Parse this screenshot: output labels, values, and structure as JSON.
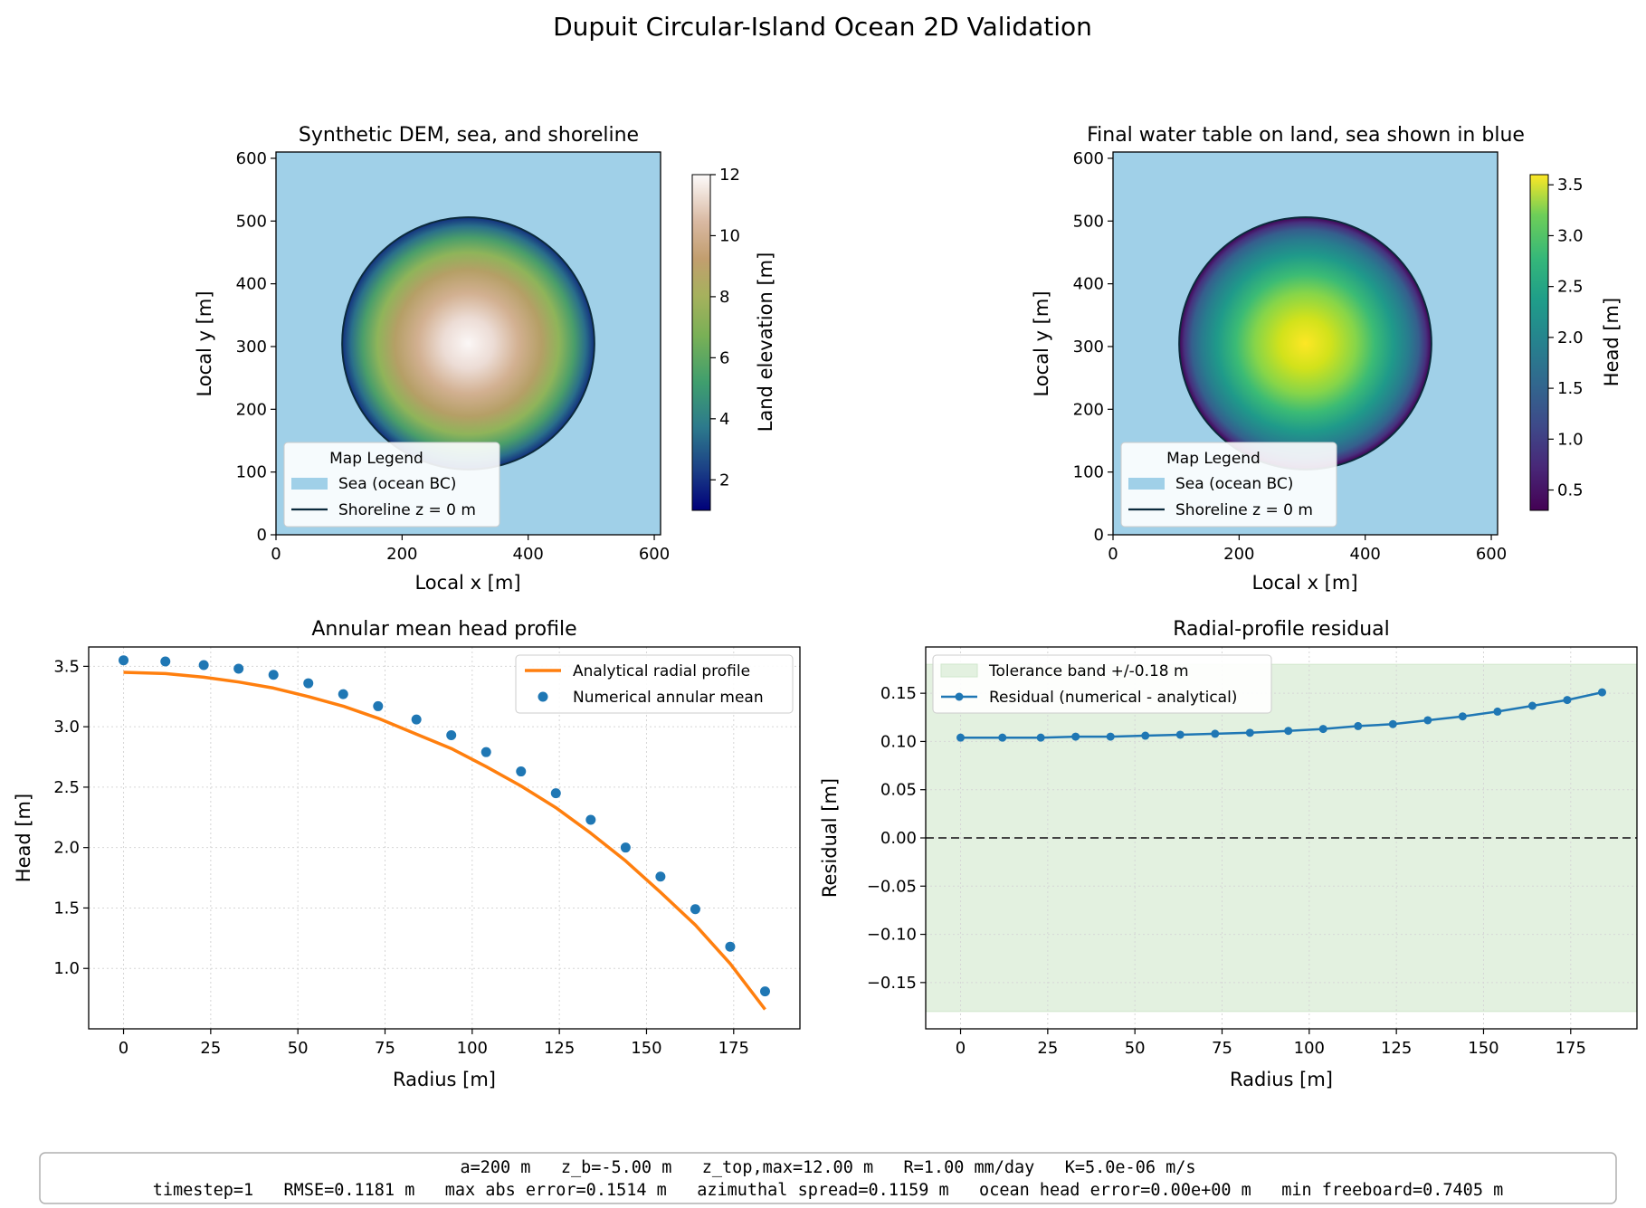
{
  "figure": {
    "suptitle": "Dupuit Circular-Island Ocean 2D Validation",
    "info_line1": "a=200 m   z_b=-5.00 m   z_top,max=12.00 m   R=1.00 mm/day   K=5.0e-06 m/s",
    "info_line2": "timestep=1   RMSE=0.1181 m   max abs error=0.1514 m   azimuthal spread=0.1159 m   ocean head error=0.00e+00 m   min freeboard=0.7405 m"
  },
  "colors": {
    "sea": "#a0d0e8",
    "shoreline": "#0b2a3c",
    "analytical": "#ff7f0e",
    "numerical": "#1f77b4",
    "tolerance_band": "#e3f1e0",
    "zero_line": "#444444"
  },
  "map_legend": {
    "title": "Map Legend",
    "sea_label": "Sea (ocean BC)",
    "shore_label": "Shoreline z = 0 m"
  },
  "chart_data": [
    {
      "type": "heatmap",
      "title": "Synthetic DEM, sea, and shoreline",
      "xlabel": "Local x [m]",
      "ylabel": "Local y [m]",
      "xticks": [
        0,
        200,
        400,
        600
      ],
      "yticks": [
        0,
        100,
        200,
        300,
        400,
        500,
        600
      ],
      "xlim": [
        0,
        610
      ],
      "ylim": [
        0,
        610
      ],
      "center": [
        305,
        305
      ],
      "island_radius": 200,
      "colorbar": {
        "label": "Land elevation [m]",
        "min": 1,
        "max": 12,
        "ticks": [
          2,
          4,
          6,
          8,
          10,
          12
        ],
        "colormap": "gist_earth"
      }
    },
    {
      "type": "heatmap",
      "title": "Final water table on land, sea shown in blue",
      "xlabel": "Local x [m]",
      "ylabel": "Local y [m]",
      "xticks": [
        0,
        200,
        400,
        600
      ],
      "yticks": [
        0,
        100,
        200,
        300,
        400,
        500,
        600
      ],
      "xlim": [
        0,
        610
      ],
      "ylim": [
        0,
        610
      ],
      "center": [
        305,
        305
      ],
      "island_radius": 200,
      "colorbar": {
        "label": "Head [m]",
        "min": 0.3,
        "max": 3.6,
        "ticks": [
          0.5,
          1.0,
          1.5,
          2.0,
          2.5,
          3.0,
          3.5
        ],
        "colormap": "viridis"
      }
    },
    {
      "type": "line",
      "title": "Annular mean head profile",
      "xlabel": "Radius [m]",
      "ylabel": "Head [m]",
      "xlim": [
        -10,
        194
      ],
      "ylim": [
        0.5,
        3.66
      ],
      "xticks": [
        0,
        25,
        50,
        75,
        100,
        125,
        150,
        175
      ],
      "yticks": [
        1.0,
        1.5,
        2.0,
        2.5,
        3.0,
        3.5
      ],
      "grid": true,
      "legend": "top-right",
      "series": [
        {
          "name": "Analytical radial profile",
          "kind": "line",
          "x": [
            0,
            12,
            23,
            33,
            43,
            53,
            63,
            73,
            83,
            94,
            104,
            114,
            124,
            134,
            144,
            154,
            164,
            174,
            184
          ],
          "values": [
            3.45,
            3.44,
            3.41,
            3.37,
            3.32,
            3.25,
            3.17,
            3.07,
            2.95,
            2.82,
            2.67,
            2.51,
            2.33,
            2.12,
            1.89,
            1.63,
            1.36,
            1.04,
            0.66
          ]
        },
        {
          "name": "Numerical annular mean",
          "kind": "scatter",
          "x": [
            0,
            12,
            23,
            33,
            43,
            53,
            63,
            73,
            84,
            94,
            104,
            114,
            124,
            134,
            144,
            154,
            164,
            174,
            184
          ],
          "values": [
            3.55,
            3.54,
            3.51,
            3.48,
            3.43,
            3.36,
            3.27,
            3.17,
            3.06,
            2.93,
            2.79,
            2.63,
            2.45,
            2.23,
            2.0,
            1.76,
            1.49,
            1.18,
            0.81
          ]
        }
      ]
    },
    {
      "type": "line",
      "title": "Radial-profile residual",
      "xlabel": "Radius [m]",
      "ylabel": "Residual [m]",
      "xlim": [
        -10,
        194
      ],
      "ylim": [
        -0.198,
        0.198
      ],
      "xticks": [
        0,
        25,
        50,
        75,
        100,
        125,
        150,
        175
      ],
      "yticks": [
        -0.15,
        -0.1,
        -0.05,
        0.0,
        0.05,
        0.1,
        0.15
      ],
      "grid": true,
      "legend": "top-left",
      "band": {
        "name": "Tolerance band +/-0.18 m",
        "lower": -0.18,
        "upper": 0.18
      },
      "zero_line": 0,
      "series": [
        {
          "name": "Residual (numerical - analytical)",
          "kind": "line-markers",
          "x": [
            0,
            12,
            23,
            33,
            43,
            53,
            63,
            73,
            83,
            94,
            104,
            114,
            124,
            134,
            144,
            154,
            164,
            174,
            184
          ],
          "values": [
            0.104,
            0.104,
            0.104,
            0.105,
            0.105,
            0.106,
            0.107,
            0.108,
            0.109,
            0.111,
            0.113,
            0.116,
            0.118,
            0.122,
            0.126,
            0.131,
            0.137,
            0.143,
            0.151
          ]
        }
      ]
    }
  ]
}
